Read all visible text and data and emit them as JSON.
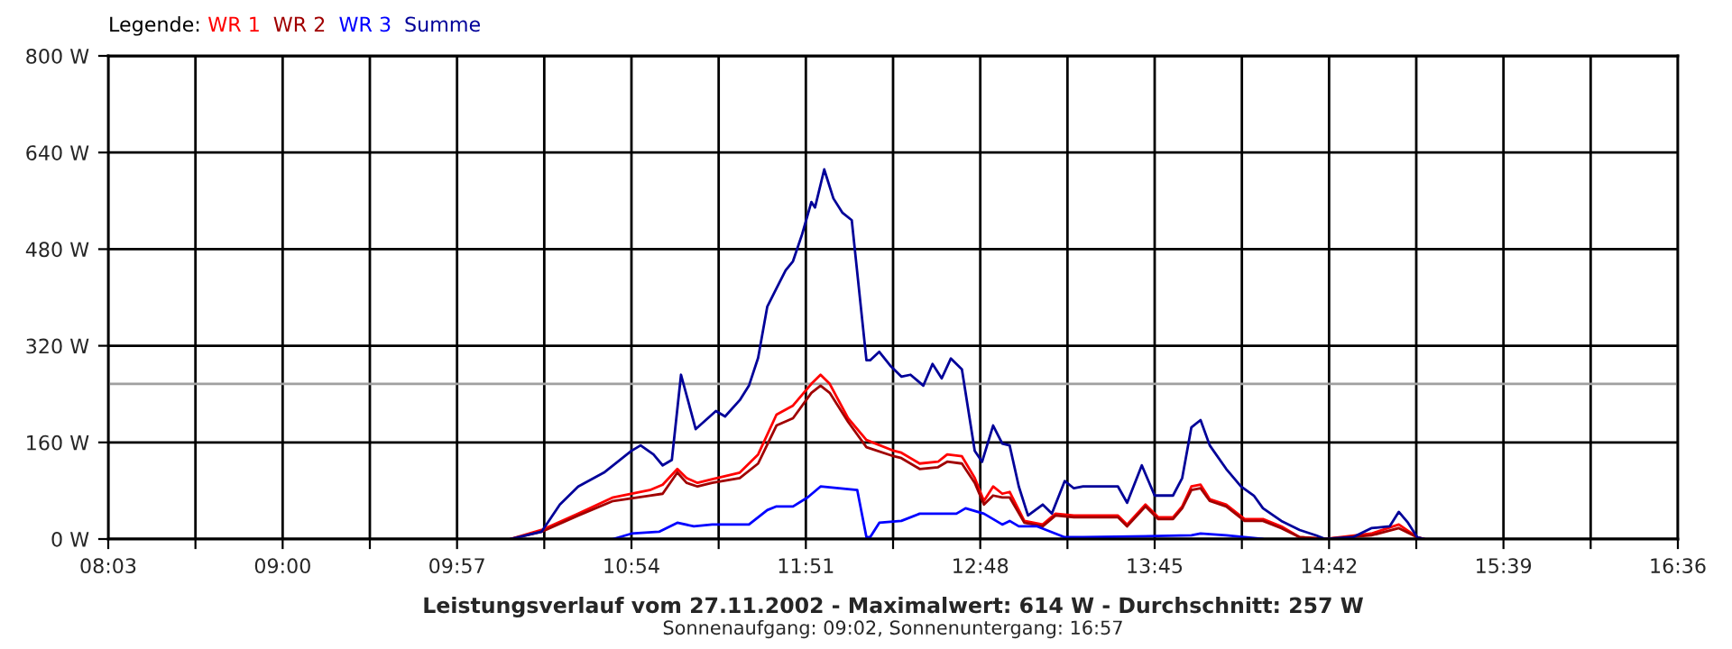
{
  "chart_data": {
    "type": "line",
    "title": "Leistungsverlauf vom 27.11.2002 - Maximalwert: 614 W - Durchschnitt: 257 W",
    "subtitle": "Sonnenaufgang: 09:02, Sonnenuntergang: 16:57",
    "legend_title": "Legende:",
    "legend": "top left",
    "grid": true,
    "marker": "none",
    "line_style": "solid",
    "xlim": [
      8.05,
      16.6
    ],
    "xticks": [
      {
        "value": 8.05,
        "label": "08:03"
      },
      {
        "value": 8.525,
        "label": null
      },
      {
        "value": 9.0,
        "label": "09:00"
      },
      {
        "value": 9.475,
        "label": null
      },
      {
        "value": 9.95,
        "label": "09:57"
      },
      {
        "value": 10.425,
        "label": null
      },
      {
        "value": 10.9,
        "label": "10:54"
      },
      {
        "value": 11.375,
        "label": null
      },
      {
        "value": 11.85,
        "label": "11:51"
      },
      {
        "value": 12.325,
        "label": null
      },
      {
        "value": 12.8,
        "label": "12:48"
      },
      {
        "value": 13.275,
        "label": null
      },
      {
        "value": 13.75,
        "label": "13:45"
      },
      {
        "value": 14.225,
        "label": null
      },
      {
        "value": 14.7,
        "label": "14:42"
      },
      {
        "value": 15.175,
        "label": null
      },
      {
        "value": 15.65,
        "label": "15:39"
      },
      {
        "value": 16.125,
        "label": null
      },
      {
        "value": 16.6,
        "label": "16:36"
      }
    ],
    "ylim": [
      0,
      800
    ],
    "yticks": [
      {
        "value": 0,
        "label": "0 W"
      },
      {
        "value": 160,
        "label": "160 W"
      },
      {
        "value": 320,
        "label": "320 W"
      },
      {
        "value": 480,
        "label": "480 W"
      },
      {
        "value": 640,
        "label": "640 W"
      },
      {
        "value": 800,
        "label": "800 W"
      }
    ],
    "ref_lines": [
      {
        "axis": "y",
        "value": 257,
        "color": "#a0a0a0"
      }
    ],
    "series": [
      {
        "name": "WR 1",
        "color": "#ff0000",
        "x": [
          10.24,
          10.41,
          10.61,
          10.8,
          11.0,
          11.07,
          11.15,
          11.2,
          11.26,
          11.34,
          11.49,
          11.59,
          11.69,
          11.78,
          11.88,
          11.93,
          11.98,
          12.08,
          12.18,
          12.33,
          12.37,
          12.47,
          12.57,
          12.62,
          12.7,
          12.77,
          12.82,
          12.87,
          12.92,
          12.96,
          13.04,
          13.14,
          13.21,
          13.31,
          13.55,
          13.6,
          13.7,
          13.77,
          13.85,
          13.9,
          13.95,
          14.0,
          14.05,
          14.14,
          14.24,
          14.34,
          14.44,
          14.54,
          14.68,
          14.93,
          15.08,
          15.18,
          15.22
        ],
        "values": [
          0,
          15,
          42,
          69,
          81,
          90,
          116,
          101,
          93,
          99,
          110,
          140,
          206,
          221,
          257,
          272,
          257,
          200,
          164,
          146,
          143,
          125,
          128,
          140,
          137,
          101,
          63,
          87,
          75,
          78,
          30,
          24,
          42,
          39,
          39,
          24,
          57,
          36,
          36,
          54,
          87,
          90,
          66,
          57,
          33,
          33,
          21,
          3,
          0,
          9,
          24,
          3,
          0
        ]
      },
      {
        "name": "WR 2",
        "color": "#a00000",
        "x": [
          10.24,
          10.41,
          10.61,
          10.8,
          11.0,
          11.07,
          11.15,
          11.2,
          11.26,
          11.34,
          11.49,
          11.59,
          11.69,
          11.78,
          11.88,
          11.93,
          11.98,
          12.08,
          12.18,
          12.33,
          12.37,
          12.47,
          12.57,
          12.62,
          12.7,
          12.77,
          12.82,
          12.87,
          12.92,
          12.96,
          13.04,
          13.14,
          13.21,
          13.31,
          13.55,
          13.6,
          13.7,
          13.77,
          13.85,
          13.9,
          13.95,
          14.0,
          14.05,
          14.14,
          14.24,
          14.34,
          14.44,
          14.54,
          14.68,
          14.93,
          15.08,
          15.18,
          15.22
        ],
        "values": [
          0,
          12,
          39,
          63,
          72,
          75,
          110,
          93,
          87,
          93,
          101,
          125,
          188,
          200,
          242,
          254,
          242,
          194,
          152,
          137,
          134,
          116,
          119,
          128,
          125,
          93,
          57,
          72,
          69,
          69,
          27,
          21,
          39,
          36,
          36,
          21,
          54,
          33,
          33,
          51,
          81,
          84,
          63,
          54,
          30,
          30,
          18,
          3,
          0,
          6,
          18,
          3,
          0
        ]
      },
      {
        "name": "WR 3",
        "color": "#0000ff",
        "x": [
          10.8,
          10.9,
          11.05,
          11.15,
          11.24,
          11.34,
          11.54,
          11.64,
          11.69,
          11.78,
          11.86,
          11.93,
          12.03,
          12.13,
          12.18,
          12.2,
          12.25,
          12.37,
          12.47,
          12.57,
          12.67,
          12.72,
          12.82,
          12.92,
          12.96,
          13.01,
          13.11,
          13.26,
          13.36,
          13.95,
          14.0,
          14.14,
          14.24,
          14.34
        ],
        "values": [
          0,
          9,
          12,
          27,
          21,
          24,
          24,
          48,
          54,
          54,
          69,
          87,
          84,
          81,
          3,
          3,
          27,
          30,
          42,
          42,
          42,
          51,
          42,
          24,
          30,
          21,
          21,
          3,
          3,
          6,
          9,
          6,
          3,
          0
        ]
      },
      {
        "name": "Summe",
        "color": "#000099",
        "x": [
          10.24,
          10.41,
          10.51,
          10.61,
          10.75,
          10.9,
          10.95,
          11.02,
          11.07,
          11.12,
          11.17,
          11.25,
          11.36,
          11.41,
          11.49,
          11.54,
          11.59,
          11.64,
          11.69,
          11.74,
          11.78,
          11.83,
          11.88,
          11.9,
          11.95,
          12.0,
          12.05,
          12.1,
          12.18,
          12.2,
          12.25,
          12.31,
          12.37,
          12.42,
          12.49,
          12.54,
          12.59,
          12.64,
          12.7,
          12.77,
          12.81,
          12.87,
          12.92,
          12.96,
          13.01,
          13.06,
          13.14,
          13.19,
          13.26,
          13.31,
          13.36,
          13.55,
          13.6,
          13.68,
          13.75,
          13.85,
          13.9,
          13.95,
          14.0,
          14.05,
          14.14,
          14.22,
          14.29,
          14.34,
          14.44,
          14.54,
          14.63,
          14.68,
          14.83,
          14.93,
          15.03,
          15.08,
          15.13,
          15.18,
          15.22
        ],
        "values": [
          0,
          12,
          57,
          87,
          110,
          146,
          155,
          140,
          122,
          131,
          272,
          182,
          212,
          203,
          230,
          254,
          300,
          385,
          415,
          445,
          460,
          505,
          558,
          549,
          612,
          564,
          540,
          528,
          296,
          296,
          310,
          287,
          269,
          272,
          254,
          290,
          266,
          299,
          281,
          146,
          128,
          188,
          158,
          155,
          87,
          39,
          57,
          42,
          96,
          84,
          87,
          87,
          60,
          122,
          72,
          72,
          101,
          185,
          197,
          155,
          116,
          87,
          72,
          51,
          30,
          15,
          6,
          0,
          3,
          18,
          21,
          45,
          27,
          3,
          0
        ]
      }
    ]
  }
}
